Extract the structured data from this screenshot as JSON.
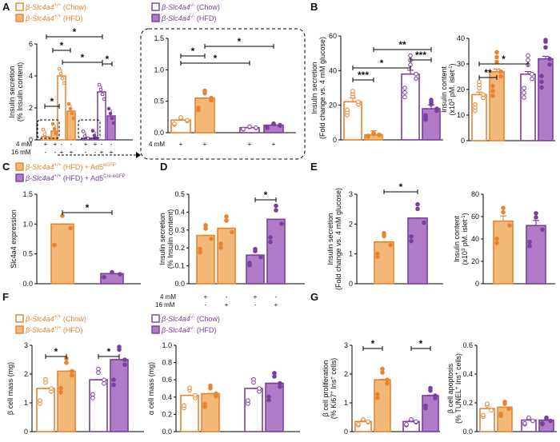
{
  "colors": {
    "orange": "#E8832F",
    "purple": "#7B3FA0",
    "orange_fill": "#F2B877",
    "purple_fill": "#B07CC8",
    "text": "#111111"
  },
  "legend_text": {
    "wt": "β-Slc4a4",
    "ko": "β-Slc4a4",
    "wt_sup": "+/+",
    "ko_sup": "-/-",
    "chow": "(Chow)",
    "hfd": "(HFD)",
    "ad5_wt": "β-Slc4a4",
    "ad5_sup": "+/+",
    "ad5_hfd": "(HFD) + Ad5",
    "ad5_egfp": "eGFP",
    "ad5_cre": "Cre-eGFP"
  },
  "labels": {
    "A": "A",
    "B": "B",
    "C": "C",
    "D": "D",
    "E": "E",
    "F": "F",
    "G": "G",
    "mM4": "4 mM",
    "mM16": "16 mM",
    "star": "*",
    "star2": "**",
    "star3": "***"
  },
  "chart_data": [
    {
      "panel": "A",
      "type": "bar",
      "ylabel": "Insulin secretion",
      "ylabel2": "(% Insulin content)",
      "ylim": [
        0,
        6
      ],
      "yticks": [
        0,
        2,
        4,
        6
      ],
      "groups": [
        "Chow WT",
        "HFD WT",
        "Chow KO",
        "HFD KO"
      ],
      "conditions": [
        "4 mM",
        "16 mM"
      ],
      "values": {
        "4mM": [
          0.2,
          0.55,
          0.08,
          0.12
        ],
        "16mM": [
          4.0,
          1.8,
          3.0,
          1.5
        ]
      }
    },
    {
      "panel": "A-inset",
      "type": "bar",
      "ylim": [
        0,
        1.5
      ],
      "yticks": [
        0.0,
        0.5,
        1.0,
        1.5
      ],
      "values": [
        0.2,
        0.55,
        0.08,
        0.12
      ]
    },
    {
      "panel": "B-left",
      "type": "bar",
      "ylabel": "Insulin secretion",
      "ylabel2": "(Fold change vs. 4 mM glucose)",
      "ylim": [
        0,
        60
      ],
      "yticks": [
        0,
        20,
        40,
        60
      ],
      "values": [
        22,
        3,
        38,
        18
      ]
    },
    {
      "panel": "B-right",
      "type": "bar",
      "ylabel": "Insulin content",
      "ylabel2": "(x10",
      "ylabel2_sup": "3",
      "ylabel2_end": " pM. islet",
      "ylabel2_end_sup": "-1",
      "ylabel2_close": ")",
      "ylim": [
        0,
        40
      ],
      "yticks": [
        0,
        10,
        20,
        30,
        40
      ],
      "values": [
        18,
        27,
        26,
        32
      ]
    },
    {
      "panel": "C",
      "type": "bar",
      "ylabel": "Slc4a4 expression",
      "ylim": [
        0,
        1.5
      ],
      "yticks": [
        0.0,
        0.5,
        1.0,
        1.5
      ],
      "values": [
        1.0,
        0.17
      ]
    },
    {
      "panel": "D",
      "type": "bar",
      "ylabel": "Insulin secretion",
      "ylabel2": "(% Insulin content)",
      "ylim": [
        0,
        0.5
      ],
      "yticks": [
        0.0,
        0.1,
        0.2,
        0.3,
        0.4,
        0.5
      ],
      "values": [
        0.27,
        0.31,
        0.16,
        0.36
      ]
    },
    {
      "panel": "E-left",
      "type": "bar",
      "ylabel": "Insulin secretion",
      "ylabel2": "(Fold change vs. 4 mM glucose)",
      "ylim": [
        0,
        3
      ],
      "yticks": [
        0,
        1,
        2,
        3
      ],
      "values": [
        1.4,
        2.2
      ]
    },
    {
      "panel": "E-right",
      "type": "bar",
      "ylabel": "Insulin content",
      "ylabel2": "(x10",
      "ylabel2_sup": "3",
      "ylabel2_end": " pM. islet",
      "ylabel2_end_sup": "-1",
      "ylabel2_close": ")",
      "ylim": [
        0,
        80
      ],
      "yticks": [
        0,
        20,
        40,
        60,
        80
      ],
      "values": [
        56,
        52
      ]
    },
    {
      "panel": "F-left",
      "type": "bar",
      "ylabel": "β cell mass (mg)",
      "ylim": [
        0,
        3
      ],
      "yticks": [
        0,
        1,
        2,
        3
      ],
      "values": [
        1.5,
        2.1,
        1.8,
        2.5
      ]
    },
    {
      "panel": "F-right",
      "type": "bar",
      "ylabel": "α cell mass (mg)",
      "ylim": [
        0,
        1.0
      ],
      "yticks": [
        0.0,
        0.2,
        0.4,
        0.6,
        0.8,
        1.0
      ],
      "values": [
        0.42,
        0.44,
        0.5,
        0.56
      ]
    },
    {
      "panel": "G-left",
      "type": "bar",
      "ylabel": "β cell proliferation",
      "ylabel2": "(% Ki67",
      "ylabel2_sup": "+",
      "ylabel2_end": " Ins",
      "ylabel2_end_sup": "+",
      "ylabel2_close": " cells)",
      "ylim": [
        0,
        3
      ],
      "yticks": [
        0,
        1,
        2,
        3
      ],
      "values": [
        0.35,
        1.8,
        0.35,
        1.25
      ]
    },
    {
      "panel": "G-right",
      "type": "bar",
      "ylabel": "β cell apoptosis",
      "ylabel2": "(% TUNEL",
      "ylabel2_sup": "+",
      "ylabel2_end": " Ins",
      "ylabel2_end_sup": "+",
      "ylabel2_close": " cells)",
      "ylim": [
        0,
        0.6
      ],
      "yticks": [
        0.0,
        0.2,
        0.4,
        0.6
      ],
      "values": [
        0.16,
        0.17,
        0.08,
        0.08
      ]
    }
  ]
}
